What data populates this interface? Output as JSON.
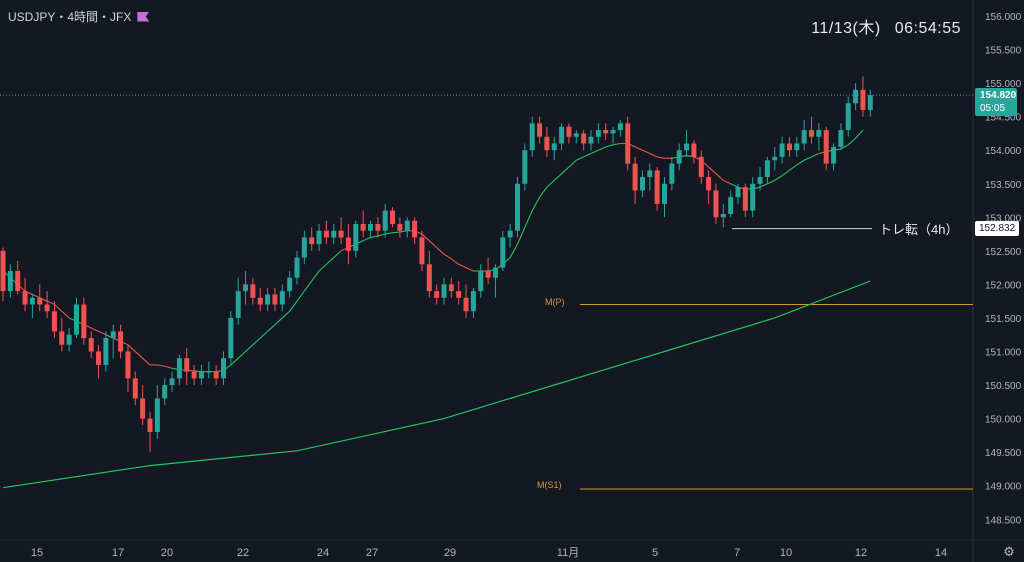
{
  "header": {
    "symbol_line": "USDJPY・4時間・JFX",
    "flag_icon": "bookmark-flag-icon",
    "flag_color": "#c86fd6"
  },
  "clock": {
    "date": "11/13(木)",
    "time": "06:54:55"
  },
  "price_tag": {
    "price": "154.820",
    "countdown": "05:05",
    "color": "#26a69a"
  },
  "support": {
    "label": "トレ転（4h）",
    "price_label": "152.832",
    "value": 152.832
  },
  "pivots": [
    {
      "label": "M(P)",
      "value": 151.7
    },
    {
      "label": "M(S1)",
      "value": 148.95
    }
  ],
  "settings_icon": "gear-icon",
  "chart_data": {
    "type": "candlestick",
    "symbol": "USDJPY",
    "timeframe": "4h",
    "current_price": 154.82,
    "colors": {
      "up": "#26a69a",
      "down": "#ef5350",
      "ma_short": "#ef5350",
      "ma_long": "#22c55e",
      "pivot": "#d69a2b"
    },
    "y_ticks": [
      "156.000",
      "155.500",
      "155.000",
      "154.500",
      "154.000",
      "153.500",
      "153.000",
      "152.500",
      "152.000",
      "151.500",
      "151.000",
      "150.500",
      "150.000",
      "149.500",
      "149.000",
      "148.500"
    ],
    "ylim": [
      148.3,
      156.15
    ],
    "x_ticks": [
      "15",
      "17",
      "20",
      "22",
      "24",
      "27",
      "29",
      "11月",
      "5",
      "7",
      "10",
      "12",
      "14"
    ],
    "ohlc": [
      [
        152.5,
        152.55,
        151.75,
        151.9
      ],
      [
        151.9,
        152.3,
        151.8,
        152.2
      ],
      [
        152.2,
        152.35,
        151.85,
        151.9
      ],
      [
        151.9,
        152.1,
        151.6,
        151.7
      ],
      [
        151.7,
        151.85,
        151.5,
        151.8
      ],
      [
        151.8,
        152.0,
        151.6,
        151.7
      ],
      [
        151.7,
        151.9,
        151.5,
        151.6
      ],
      [
        151.6,
        151.75,
        151.2,
        151.3
      ],
      [
        151.3,
        151.5,
        151.0,
        151.1
      ],
      [
        151.1,
        151.35,
        151.0,
        151.25
      ],
      [
        151.25,
        151.8,
        151.2,
        151.7
      ],
      [
        151.7,
        151.8,
        151.1,
        151.2
      ],
      [
        151.2,
        151.3,
        150.9,
        151.0
      ],
      [
        151.0,
        151.1,
        150.6,
        150.8
      ],
      [
        150.8,
        151.3,
        150.7,
        151.2
      ],
      [
        151.2,
        151.4,
        150.9,
        151.3
      ],
      [
        151.3,
        151.4,
        150.9,
        151.0
      ],
      [
        151.0,
        151.1,
        150.4,
        150.6
      ],
      [
        150.6,
        150.7,
        150.2,
        150.3
      ],
      [
        150.3,
        150.5,
        149.9,
        150.0
      ],
      [
        150.0,
        150.1,
        149.5,
        149.8
      ],
      [
        149.8,
        150.5,
        149.7,
        150.3
      ],
      [
        150.3,
        150.6,
        150.2,
        150.5
      ],
      [
        150.5,
        150.7,
        150.4,
        150.6
      ],
      [
        150.6,
        150.95,
        150.5,
        150.9
      ],
      [
        150.9,
        151.05,
        150.5,
        150.7
      ],
      [
        150.7,
        150.8,
        150.5,
        150.6
      ],
      [
        150.6,
        150.8,
        150.5,
        150.7
      ],
      [
        150.7,
        150.85,
        150.6,
        150.7
      ],
      [
        150.7,
        150.8,
        150.5,
        150.6
      ],
      [
        150.6,
        151.0,
        150.5,
        150.9
      ],
      [
        150.9,
        151.6,
        150.8,
        151.5
      ],
      [
        151.5,
        152.1,
        151.4,
        151.9
      ],
      [
        151.9,
        152.2,
        151.7,
        152.0
      ],
      [
        152.0,
        152.1,
        151.7,
        151.8
      ],
      [
        151.8,
        151.95,
        151.6,
        151.7
      ],
      [
        151.7,
        151.95,
        151.6,
        151.85
      ],
      [
        151.85,
        151.95,
        151.6,
        151.7
      ],
      [
        151.7,
        152.0,
        151.6,
        151.9
      ],
      [
        151.9,
        152.2,
        151.8,
        152.1
      ],
      [
        152.1,
        152.5,
        152.0,
        152.4
      ],
      [
        152.4,
        152.8,
        152.3,
        152.7
      ],
      [
        152.7,
        152.85,
        152.5,
        152.6
      ],
      [
        152.6,
        152.9,
        152.5,
        152.8
      ],
      [
        152.8,
        152.95,
        152.6,
        152.7
      ],
      [
        152.7,
        152.9,
        152.6,
        152.8
      ],
      [
        152.8,
        153.0,
        152.6,
        152.7
      ],
      [
        152.7,
        152.9,
        152.3,
        152.5
      ],
      [
        152.5,
        152.95,
        152.4,
        152.9
      ],
      [
        152.9,
        153.1,
        152.7,
        152.8
      ],
      [
        152.8,
        152.95,
        152.7,
        152.9
      ],
      [
        152.9,
        153.0,
        152.7,
        152.8
      ],
      [
        152.8,
        153.2,
        152.7,
        153.1
      ],
      [
        153.1,
        153.15,
        152.85,
        152.9
      ],
      [
        152.9,
        153.0,
        152.7,
        152.8
      ],
      [
        152.8,
        153.0,
        152.7,
        152.95
      ],
      [
        152.95,
        153.0,
        152.6,
        152.7
      ],
      [
        152.7,
        152.8,
        152.2,
        152.3
      ],
      [
        152.3,
        152.5,
        151.8,
        151.9
      ],
      [
        151.9,
        152.0,
        151.7,
        151.8
      ],
      [
        151.8,
        152.1,
        151.7,
        152.0
      ],
      [
        152.0,
        152.1,
        151.8,
        151.9
      ],
      [
        151.9,
        152.05,
        151.7,
        151.8
      ],
      [
        151.8,
        152.0,
        151.5,
        151.6
      ],
      [
        151.6,
        151.95,
        151.5,
        151.9
      ],
      [
        151.9,
        152.3,
        151.8,
        152.2
      ],
      [
        152.2,
        152.4,
        152.0,
        152.1
      ],
      [
        152.1,
        152.3,
        151.8,
        152.25
      ],
      [
        152.25,
        152.8,
        152.2,
        152.7
      ],
      [
        152.7,
        152.9,
        152.55,
        152.8
      ],
      [
        152.8,
        153.6,
        152.7,
        153.5
      ],
      [
        153.5,
        154.1,
        153.4,
        154.0
      ],
      [
        154.0,
        154.5,
        153.9,
        154.4
      ],
      [
        154.4,
        154.5,
        154.1,
        154.2
      ],
      [
        154.2,
        154.35,
        153.9,
        154.0
      ],
      [
        154.0,
        154.2,
        153.85,
        154.1
      ],
      [
        154.1,
        154.4,
        154.0,
        154.35
      ],
      [
        154.35,
        154.4,
        154.1,
        154.2
      ],
      [
        154.2,
        154.3,
        154.1,
        154.25
      ],
      [
        154.25,
        154.3,
        154.0,
        154.1
      ],
      [
        154.1,
        154.3,
        154.0,
        154.2
      ],
      [
        154.2,
        154.4,
        154.1,
        154.3
      ],
      [
        154.3,
        154.4,
        154.15,
        154.25
      ],
      [
        154.25,
        154.35,
        154.1,
        154.3
      ],
      [
        154.3,
        154.45,
        154.2,
        154.4
      ],
      [
        154.4,
        154.5,
        153.7,
        153.8
      ],
      [
        153.8,
        153.9,
        153.2,
        153.4
      ],
      [
        153.4,
        153.7,
        153.3,
        153.6
      ],
      [
        153.6,
        153.8,
        153.4,
        153.7
      ],
      [
        153.7,
        153.75,
        153.1,
        153.2
      ],
      [
        153.2,
        153.6,
        153.0,
        153.5
      ],
      [
        153.5,
        153.9,
        153.4,
        153.8
      ],
      [
        153.8,
        154.1,
        153.7,
        154.0
      ],
      [
        154.0,
        154.3,
        153.9,
        154.1
      ],
      [
        154.1,
        154.15,
        153.8,
        153.9
      ],
      [
        153.9,
        154.0,
        153.5,
        153.6
      ],
      [
        153.6,
        153.7,
        153.2,
        153.4
      ],
      [
        153.4,
        153.5,
        152.9,
        153.0
      ],
      [
        153.0,
        153.2,
        152.85,
        153.05
      ],
      [
        153.05,
        153.4,
        153.0,
        153.3
      ],
      [
        153.3,
        153.5,
        153.2,
        153.45
      ],
      [
        153.45,
        153.5,
        153.0,
        153.1
      ],
      [
        153.1,
        153.6,
        153.0,
        153.5
      ],
      [
        153.5,
        153.75,
        153.4,
        153.6
      ],
      [
        153.6,
        153.9,
        153.5,
        153.85
      ],
      [
        153.85,
        154.05,
        153.7,
        153.9
      ],
      [
        153.9,
        154.2,
        153.8,
        154.1
      ],
      [
        154.1,
        154.2,
        153.9,
        154.0
      ],
      [
        154.0,
        154.2,
        153.9,
        154.1
      ],
      [
        154.1,
        154.45,
        154.0,
        154.3
      ],
      [
        154.3,
        154.5,
        154.1,
        154.2
      ],
      [
        154.2,
        154.4,
        154.0,
        154.3
      ],
      [
        154.3,
        154.35,
        153.7,
        153.8
      ],
      [
        153.8,
        154.1,
        153.7,
        154.05
      ],
      [
        154.05,
        154.4,
        154.0,
        154.3
      ],
      [
        154.3,
        154.8,
        154.2,
        154.7
      ],
      [
        154.7,
        155.0,
        154.6,
        154.9
      ],
      [
        154.9,
        155.1,
        154.5,
        154.6
      ],
      [
        154.6,
        154.9,
        154.5,
        154.82
      ]
    ],
    "ma_short": {
      "start": 0,
      "values": [
        152.2,
        152.1,
        152.0,
        151.9,
        151.85,
        151.8,
        151.75,
        151.7,
        151.6,
        151.5,
        151.45,
        151.4,
        151.35,
        151.3,
        151.25,
        151.2,
        151.15,
        151.1,
        151.0,
        150.9,
        150.8,
        150.8,
        150.78,
        150.75,
        150.73,
        150.72,
        150.71,
        150.7,
        150.7,
        150.7,
        150.72,
        150.8,
        150.9,
        151.0,
        151.1,
        151.2,
        151.3,
        151.4,
        151.5,
        151.6,
        151.75,
        151.9,
        152.05,
        152.2,
        152.3,
        152.4,
        152.5,
        152.55,
        152.6,
        152.65,
        152.7,
        152.72,
        152.75,
        152.77,
        152.78,
        152.8,
        152.8,
        152.75,
        152.65,
        152.55,
        152.45,
        152.38,
        152.3,
        152.25,
        152.2,
        152.2,
        152.2,
        152.22,
        152.3,
        152.4,
        152.6,
        152.85,
        153.1,
        153.3,
        153.45,
        153.55,
        153.65,
        153.75,
        153.85,
        153.9,
        153.95,
        154.0,
        154.05,
        154.08,
        154.1,
        154.1,
        154.05,
        154.0,
        153.95,
        153.9,
        153.88,
        153.88,
        153.9,
        153.92,
        153.9,
        153.85,
        153.75,
        153.65,
        153.55,
        153.5,
        153.45,
        153.42,
        153.42,
        153.45,
        153.5,
        153.55,
        153.62,
        153.7,
        153.78,
        153.85,
        153.9,
        153.95,
        153.98,
        154.0,
        154.02,
        154.08,
        154.18,
        154.3
      ]
    },
    "ma_long": {
      "values": [
        [
          0,
          148.97
        ],
        [
          20,
          149.3
        ],
        [
          40,
          149.52
        ],
        [
          60,
          150.0
        ],
        [
          75,
          150.5
        ],
        [
          90,
          151.0
        ],
        [
          105,
          151.5
        ],
        [
          118,
          152.05
        ]
      ]
    }
  }
}
